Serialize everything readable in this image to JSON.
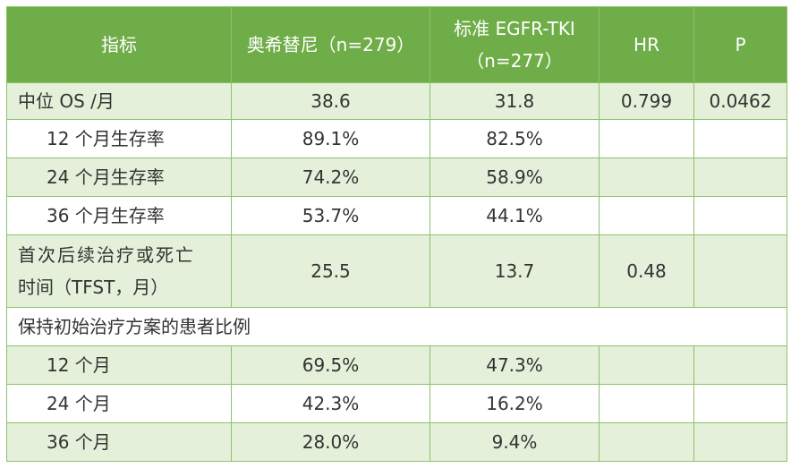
{
  "table": {
    "headers": {
      "indicator": "指标",
      "osimertinib": "奥希替尼（n=279）",
      "standard_line1": "标准 EGFR-TKI",
      "standard_line2": "（n=277）",
      "hr": "HR",
      "p": "P"
    },
    "rows": [
      {
        "label": "中位 OS /月",
        "osimertinib": "38.6",
        "standard": "31.8",
        "hr": "0.799",
        "p": "0.0462"
      },
      {
        "label": "12 个月生存率",
        "osimertinib": "89.1%",
        "standard": "82.5%",
        "hr": "",
        "p": ""
      },
      {
        "label": "24 个月生存率",
        "osimertinib": "74.2%",
        "standard": "58.9%",
        "hr": "",
        "p": ""
      },
      {
        "label": "36 个月生存率",
        "osimertinib": "53.7%",
        "standard": "44.1%",
        "hr": "",
        "p": ""
      },
      {
        "label_line1": "首次后续治疗或死亡",
        "label_line2": "时间（TFST，月）",
        "osimertinib": "25.5",
        "standard": "13.7",
        "hr": "0.48",
        "p": ""
      },
      {
        "label": "保持初始治疗方案的患者比例"
      },
      {
        "label": "12 个月",
        "osimertinib": "69.5%",
        "standard": "47.3%",
        "hr": "",
        "p": ""
      },
      {
        "label": "24 个月",
        "osimertinib": "42.3%",
        "standard": "16.2%",
        "hr": "",
        "p": ""
      },
      {
        "label": "36 个月",
        "osimertinib": "28.0%",
        "standard": "9.4%",
        "hr": "",
        "p": ""
      }
    ]
  }
}
